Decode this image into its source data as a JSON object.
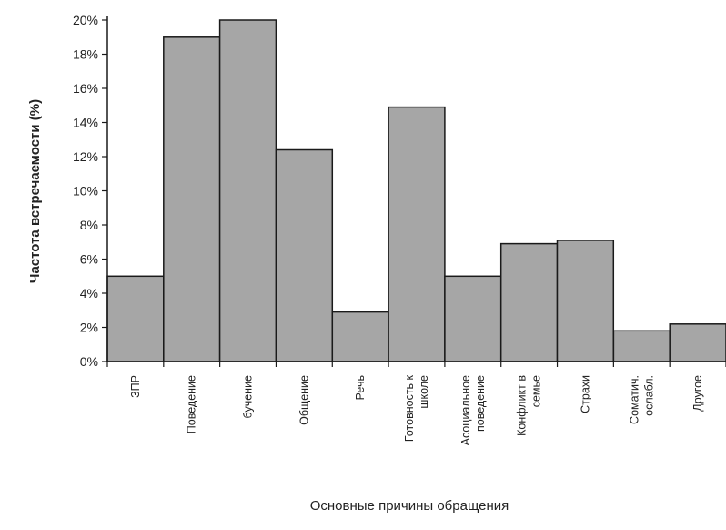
{
  "chart_data": {
    "type": "bar",
    "title": "",
    "xlabel": "Основные причины обращения",
    "ylabel": "Частота встречаемости (%)",
    "ylim": [
      0,
      20
    ],
    "y_ticks": [
      "0%",
      "2%",
      "4%",
      "6%",
      "8%",
      "10%",
      "12%",
      "14%",
      "16%",
      "18%",
      "20%"
    ],
    "categories": [
      [
        "ЗПР"
      ],
      [
        "Поведение"
      ],
      [
        "бучение"
      ],
      [
        "Общение"
      ],
      [
        "Речь"
      ],
      [
        "Готовность к",
        "школе"
      ],
      [
        "Асоциальное",
        "поведение"
      ],
      [
        "Конфликт в",
        "семье"
      ],
      [
        "Страхи"
      ],
      [
        "Соматич.",
        "ослабл."
      ],
      [
        "Другое"
      ]
    ],
    "values": [
      5,
      19,
      20,
      12.4,
      2.9,
      14.9,
      5,
      6.9,
      7.1,
      1.8,
      2.2
    ],
    "bar_color": "#a6a6a6",
    "grid": false,
    "legend": "none"
  }
}
